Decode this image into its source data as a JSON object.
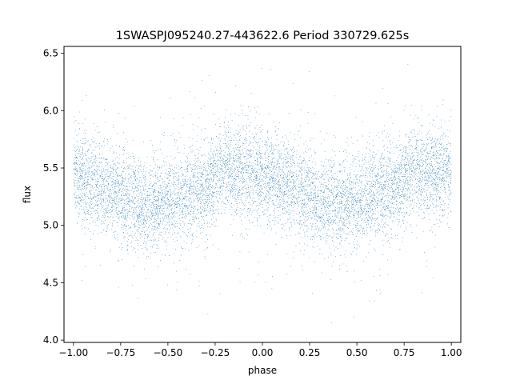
{
  "chart_data": {
    "type": "scatter",
    "title": "1SWASPJ095240.27-443622.6 Period 330729.625s",
    "xlabel": "phase",
    "ylabel": "flux",
    "xlim": [
      -1.05,
      1.05
    ],
    "ylim": [
      3.98,
      6.56
    ],
    "xticks": [
      -1.0,
      -0.75,
      -0.5,
      -0.25,
      0.0,
      0.25,
      0.5,
      0.75,
      1.0
    ],
    "xtick_labels": [
      "−1.00",
      "−0.75",
      "−0.50",
      "−0.25",
      "0.00",
      "0.25",
      "0.50",
      "0.75",
      "1.00"
    ],
    "yticks": [
      4.0,
      4.5,
      5.0,
      5.5,
      6.0,
      6.5
    ],
    "ytick_labels": [
      "4.0",
      "4.5",
      "5.0",
      "5.5",
      "6.0",
      "6.5"
    ],
    "grid": false,
    "marker_color": "#1f77b4",
    "point_count": 9000,
    "flux_profile": {
      "phase": [
        0.0,
        0.1,
        0.2,
        0.3,
        0.4,
        0.5,
        0.6,
        0.7,
        0.8,
        0.9,
        1.0
      ],
      "mean_flux": [
        5.47,
        5.36,
        5.3,
        5.2,
        5.18,
        5.2,
        5.28,
        5.33,
        5.49,
        5.46,
        5.47
      ],
      "scatter": 0.2,
      "note_range": [
        4.1,
        6.45
      ]
    }
  }
}
